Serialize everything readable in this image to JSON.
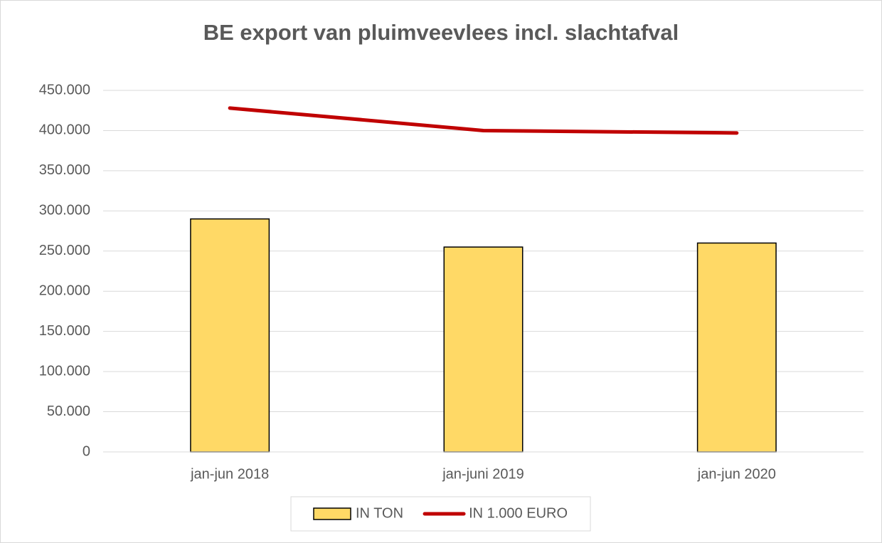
{
  "chart_data": {
    "type": "bar",
    "title": "BE export van pluimveevlees incl. slachtafval",
    "categories": [
      "jan-jun 2018",
      "jan-juni 2019",
      "jan-jun 2020"
    ],
    "series": [
      {
        "name": "IN TON",
        "type": "bar",
        "color": "#ffd966",
        "values": [
          290000,
          255000,
          260000
        ]
      },
      {
        "name": "IN 1.000 EURO",
        "type": "line",
        "color": "#c00000",
        "values": [
          428000,
          400000,
          397000
        ]
      }
    ],
    "ylim": [
      0,
      450000
    ],
    "yticks": [
      0,
      {
        "value": 50000,
        "label": "50.000"
      },
      {
        "value": 100000,
        "label": "100.000"
      },
      {
        "value": 150000,
        "label": "150.000"
      },
      {
        "value": 200000,
        "label": "200.000"
      },
      {
        "value": 250000,
        "label": "250.000"
      },
      {
        "value": 300000,
        "label": "300.000"
      },
      {
        "value": 350000,
        "label": "350.000"
      },
      {
        "value": 400000,
        "label": "400.000"
      },
      {
        "value": 450000,
        "label": "450.000"
      }
    ],
    "grid": true,
    "legend": "bottom"
  }
}
